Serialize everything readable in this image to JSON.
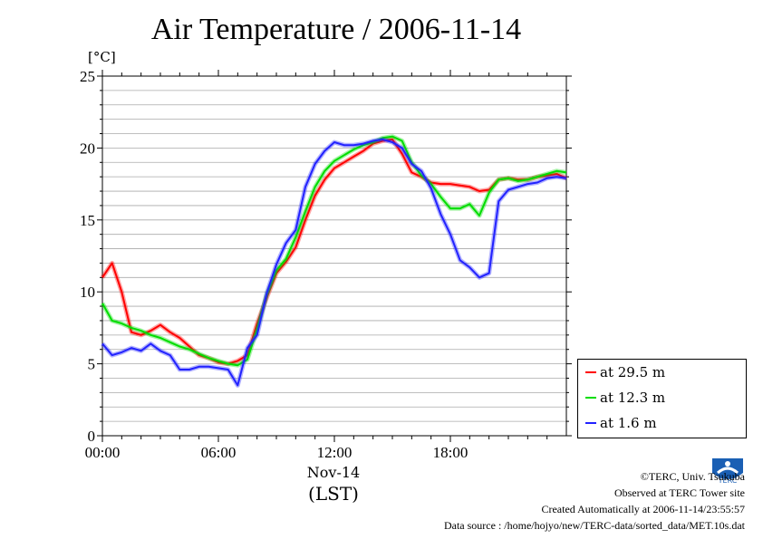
{
  "chart_data": {
    "type": "line",
    "title": "Air Temperature / 2006-11-14",
    "ylabel": "[°C]",
    "xlabel": "(LST)",
    "x_date_label": "Nov-14",
    "ylim": [
      0,
      25
    ],
    "y_ticks": [
      0,
      5,
      10,
      15,
      20,
      25
    ],
    "xlim": [
      0,
      24
    ],
    "x_ticks": [
      0,
      6,
      12,
      18
    ],
    "x_tick_labels": [
      "00:00",
      "06:00",
      "12:00",
      "18:00"
    ],
    "grid": true,
    "legend_position": "bottom-right outside",
    "x_hours": [
      0,
      0.5,
      1,
      1.5,
      2,
      2.5,
      3,
      3.5,
      4,
      4.5,
      5,
      5.5,
      6,
      6.5,
      7,
      7.5,
      8,
      8.5,
      9,
      9.5,
      10,
      10.5,
      11,
      11.5,
      12,
      12.5,
      13,
      13.5,
      14,
      14.5,
      15,
      15.5,
      16,
      16.5,
      17,
      17.5,
      18,
      18.5,
      19,
      19.5,
      20,
      20.5,
      21,
      21.5,
      22,
      22.5,
      23,
      23.5,
      24
    ],
    "series": [
      {
        "name": "at 29.5 m",
        "color": "#ff0000",
        "values": [
          11.0,
          12.0,
          10.0,
          7.2,
          7.0,
          7.3,
          7.7,
          7.2,
          6.8,
          6.2,
          5.6,
          5.4,
          5.1,
          5.0,
          5.2,
          5.6,
          7.8,
          9.6,
          11.3,
          12.1,
          13.1,
          15.0,
          16.7,
          17.8,
          18.6,
          19.0,
          19.4,
          19.8,
          20.3,
          20.5,
          20.6,
          19.6,
          18.3,
          18.0,
          17.6,
          17.5,
          17.5,
          17.4,
          17.3,
          17.0,
          17.1,
          17.8,
          17.9,
          17.8,
          17.8,
          18.0,
          18.1,
          18.2,
          17.9
        ]
      },
      {
        "name": "at 12.3 m",
        "color": "#00dd00",
        "values": [
          9.2,
          8.0,
          7.8,
          7.5,
          7.3,
          7.0,
          6.8,
          6.5,
          6.2,
          6.0,
          5.7,
          5.4,
          5.2,
          5.0,
          4.9,
          5.3,
          7.4,
          9.8,
          11.5,
          12.3,
          13.8,
          15.6,
          17.3,
          18.4,
          19.1,
          19.5,
          19.9,
          20.2,
          20.4,
          20.7,
          20.8,
          20.5,
          19.0,
          18.1,
          17.5,
          16.6,
          15.8,
          15.8,
          16.1,
          15.3,
          16.9,
          17.8,
          17.9,
          17.7,
          17.8,
          18.0,
          18.2,
          18.4,
          18.3
        ]
      },
      {
        "name": "at 1.6 m",
        "color": "#2222ff",
        "values": [
          6.4,
          5.6,
          5.8,
          6.1,
          5.9,
          6.4,
          5.9,
          5.6,
          4.6,
          4.6,
          4.8,
          4.8,
          4.7,
          4.6,
          3.5,
          6.1,
          7.0,
          9.9,
          11.9,
          13.4,
          14.3,
          17.3,
          18.9,
          19.8,
          20.4,
          20.2,
          20.2,
          20.3,
          20.5,
          20.6,
          20.4,
          20.0,
          18.9,
          18.4,
          17.2,
          15.4,
          14.0,
          12.2,
          11.7,
          11.0,
          11.3,
          16.3,
          17.1,
          17.3,
          17.5,
          17.6,
          17.9,
          18.0,
          17.9
        ]
      }
    ]
  },
  "footer": {
    "copyright": "©TERC, Univ. Tsukuba",
    "observed": "Observed at TERC Tower site",
    "created": "Created Automatically at 2006-11-14/23:55:57",
    "source": "Data source : /home/hojyo/new/TERC-data/sorted_data/MET.10s.dat"
  },
  "logo_text": "TERC"
}
